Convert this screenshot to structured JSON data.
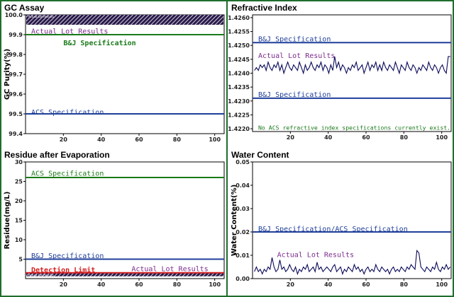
{
  "colors": {
    "frame": "#1f6e2c",
    "blue_spec": "#1f3f9a",
    "green_spec": "#1a7a1a",
    "purple_actual": "#7a2a8c",
    "red_detect": "#d42020",
    "line": "#0a0a5a"
  },
  "chart_data": [
    {
      "id": "gc",
      "type": "line",
      "title": "GC Assay",
      "xlabel": "",
      "ylabel": "GC Purity(%)",
      "xlim": [
        0,
        105
      ],
      "xticks": [
        20,
        40,
        60,
        80,
        100
      ],
      "ylim": [
        99.4,
        100.0
      ],
      "yticks": [
        "99.4",
        "99.5",
        "99.6",
        "99.7",
        "99.8",
        "99.9",
        "100.0"
      ],
      "yticks_num": [
        99.4,
        99.5,
        99.6,
        99.7,
        99.8,
        99.9,
        100.0
      ],
      "band": {
        "y_low": 99.95,
        "y_high": 100.0,
        "label": "Actual Lot Results"
      },
      "annotations": [
        {
          "text": "Actual Lot Results",
          "x": 3,
          "y": 99.92,
          "color": "purple",
          "bold": false
        },
        {
          "text": "B&J Specification",
          "x": 20,
          "y": 99.86,
          "color": "green",
          "bold": true
        },
        {
          "text": "ACS Specification",
          "x": 3,
          "y": 99.51,
          "color": "blue",
          "bold": false
        }
      ],
      "spec_lines": [
        {
          "name": "B&J Specification",
          "y": 99.9,
          "color": "green"
        },
        {
          "name": "ACS Specification",
          "y": 99.5,
          "color": "blue"
        }
      ]
    },
    {
      "id": "ri",
      "type": "line",
      "title": "Refractive Index",
      "xlabel": "",
      "ylabel": "",
      "xlim": [
        0,
        105
      ],
      "xticks": [
        20,
        40,
        60,
        80,
        100
      ],
      "ylim": [
        1.4219,
        1.4261
      ],
      "yticks": [
        "1.4220",
        "1.4225",
        "1.4230",
        "1.4235",
        "1.4240",
        "1.4245",
        "1.4250",
        "1.4255",
        "1.4260"
      ],
      "yticks_num": [
        1.422,
        1.4225,
        1.423,
        1.4235,
        1.424,
        1.4245,
        1.425,
        1.4255,
        1.426
      ],
      "annotations": [
        {
          "text": "B&J Specification",
          "x": 3,
          "y": 1.42525,
          "color": "blue",
          "bold": false
        },
        {
          "text": "Actual Lot Results",
          "x": 3,
          "y": 1.42465,
          "color": "purple",
          "bold": false
        },
        {
          "text": "B&J Specification",
          "x": 3,
          "y": 1.42325,
          "color": "blue",
          "bold": false
        },
        {
          "text": "No ACS refractive index specifications currently exist.",
          "x": 3,
          "y": 1.42206,
          "color": "green",
          "bold": false
        }
      ],
      "spec_lines": [
        {
          "name": "B&J Specification",
          "y": 1.4251,
          "color": "blue"
        },
        {
          "name": "B&J Specification",
          "y": 1.4231,
          "color": "blue"
        }
      ],
      "series": [
        {
          "name": "Actual Lot Results",
          "values": [
            1.4241,
            1.4242,
            1.4241,
            1.4243,
            1.4242,
            1.4243,
            1.4241,
            1.4244,
            1.4242,
            1.4241,
            1.4243,
            1.4242,
            1.4244,
            1.4241,
            1.4243,
            1.424,
            1.4242,
            1.4244,
            1.4242,
            1.4241,
            1.4243,
            1.4242,
            1.4241,
            1.4244,
            1.4242,
            1.424,
            1.4243,
            1.4241,
            1.4242,
            1.4244,
            1.4242,
            1.4241,
            1.4243,
            1.4242,
            1.4244,
            1.4241,
            1.4243,
            1.4242,
            1.424,
            1.4243,
            1.4241,
            1.4246,
            1.4242,
            1.4244,
            1.4241,
            1.4243,
            1.4242,
            1.424,
            1.4242,
            1.4241,
            1.4243,
            1.4242,
            1.4244,
            1.4241,
            1.4242,
            1.4243,
            1.424,
            1.4242,
            1.4244,
            1.4241,
            1.4243,
            1.4242,
            1.4244,
            1.4241,
            1.4243,
            1.4241,
            1.4244,
            1.4242,
            1.4241,
            1.4243,
            1.4242,
            1.4241,
            1.4244,
            1.4242,
            1.424,
            1.4243,
            1.4242,
            1.4241,
            1.4244,
            1.4242,
            1.4241,
            1.4243,
            1.4242,
            1.424,
            1.4242,
            1.4241,
            1.4243,
            1.4242,
            1.4241,
            1.4244,
            1.4242,
            1.4241,
            1.4243,
            1.4242,
            1.424,
            1.4242,
            1.4243,
            1.4241,
            1.424,
            1.4246,
            1.4246
          ]
        }
      ]
    },
    {
      "id": "res",
      "type": "line",
      "title": "Residue after Evaporation",
      "xlabel": "",
      "ylabel": "Residue(mg/L)",
      "xlim": [
        0,
        105
      ],
      "xticks": [
        20,
        40,
        60,
        80,
        100
      ],
      "ylim": [
        0,
        30
      ],
      "yticks": [
        "5",
        "10",
        "15",
        "20",
        "25",
        "30"
      ],
      "yticks_num": [
        5,
        10,
        15,
        20,
        25,
        30
      ],
      "band": {
        "y_low": 0.6,
        "y_high": 1.4,
        "label": "Actual Lot Results"
      },
      "annotations": [
        {
          "text": "ACS Specification",
          "x": 3,
          "y": 27.2,
          "color": "green",
          "bold": false
        },
        {
          "text": "B&J Specification",
          "x": 3,
          "y": 6.0,
          "color": "blue",
          "bold": false
        },
        {
          "text": "Detection Limit",
          "x": 3,
          "y": 2.4,
          "color": "red",
          "bold": true
        },
        {
          "text": "Actual Lot Results",
          "x": 56,
          "y": 2.6,
          "color": "purple",
          "bold": false
        }
      ],
      "spec_lines": [
        {
          "name": "ACS Specification",
          "y": 26,
          "color": "green"
        },
        {
          "name": "B&J Specification",
          "y": 5,
          "color": "blue"
        },
        {
          "name": "Detection Limit",
          "y": 1.5,
          "color": "red"
        }
      ]
    },
    {
      "id": "wc",
      "type": "line",
      "title": "Water Content",
      "xlabel": "",
      "ylabel": "Water Content(%)",
      "xlim": [
        0,
        105
      ],
      "xticks": [
        20,
        40,
        60,
        80,
        100
      ],
      "ylim": [
        0,
        0.05
      ],
      "yticks": [
        "0.00",
        "0.01",
        "0.02",
        "0.03",
        "0.04",
        "0.05"
      ],
      "yticks_num": [
        0,
        0.01,
        0.02,
        0.03,
        0.04,
        0.05
      ],
      "annotations": [
        {
          "text": "B&J Specification/ACS Specification",
          "x": 3,
          "y": 0.0215,
          "color": "blue",
          "bold": false
        },
        {
          "text": "Actual Lot Results",
          "x": 13,
          "y": 0.0105,
          "color": "purple",
          "bold": false
        }
      ],
      "spec_lines": [
        {
          "name": "B&J Specification/ACS Specification",
          "y": 0.02,
          "color": "blue"
        }
      ],
      "series": [
        {
          "name": "Actual Lot Results",
          "values": [
            0.003,
            0.005,
            0.003,
            0.004,
            0.002,
            0.004,
            0.003,
            0.005,
            0.004,
            0.009,
            0.005,
            0.003,
            0.004,
            0.008,
            0.004,
            0.005,
            0.003,
            0.004,
            0.006,
            0.004,
            0.003,
            0.005,
            0.002,
            0.004,
            0.003,
            0.005,
            0.004,
            0.006,
            0.003,
            0.004,
            0.005,
            0.003,
            0.007,
            0.004,
            0.005,
            0.003,
            0.004,
            0.005,
            0.004,
            0.003,
            0.005,
            0.006,
            0.003,
            0.004,
            0.005,
            0.002,
            0.004,
            0.003,
            0.005,
            0.004,
            0.003,
            0.006,
            0.004,
            0.005,
            0.003,
            0.004,
            0.002,
            0.004,
            0.005,
            0.003,
            0.004,
            0.003,
            0.006,
            0.004,
            0.003,
            0.005,
            0.004,
            0.003,
            0.004,
            0.002,
            0.004,
            0.005,
            0.003,
            0.004,
            0.003,
            0.005,
            0.004,
            0.003,
            0.005,
            0.004,
            0.006,
            0.005,
            0.004,
            0.012,
            0.011,
            0.005,
            0.004,
            0.003,
            0.005,
            0.004,
            0.003,
            0.005,
            0.004,
            0.007,
            0.004,
            0.003,
            0.005,
            0.004,
            0.006,
            0.004,
            0.005
          ]
        }
      ]
    }
  ]
}
